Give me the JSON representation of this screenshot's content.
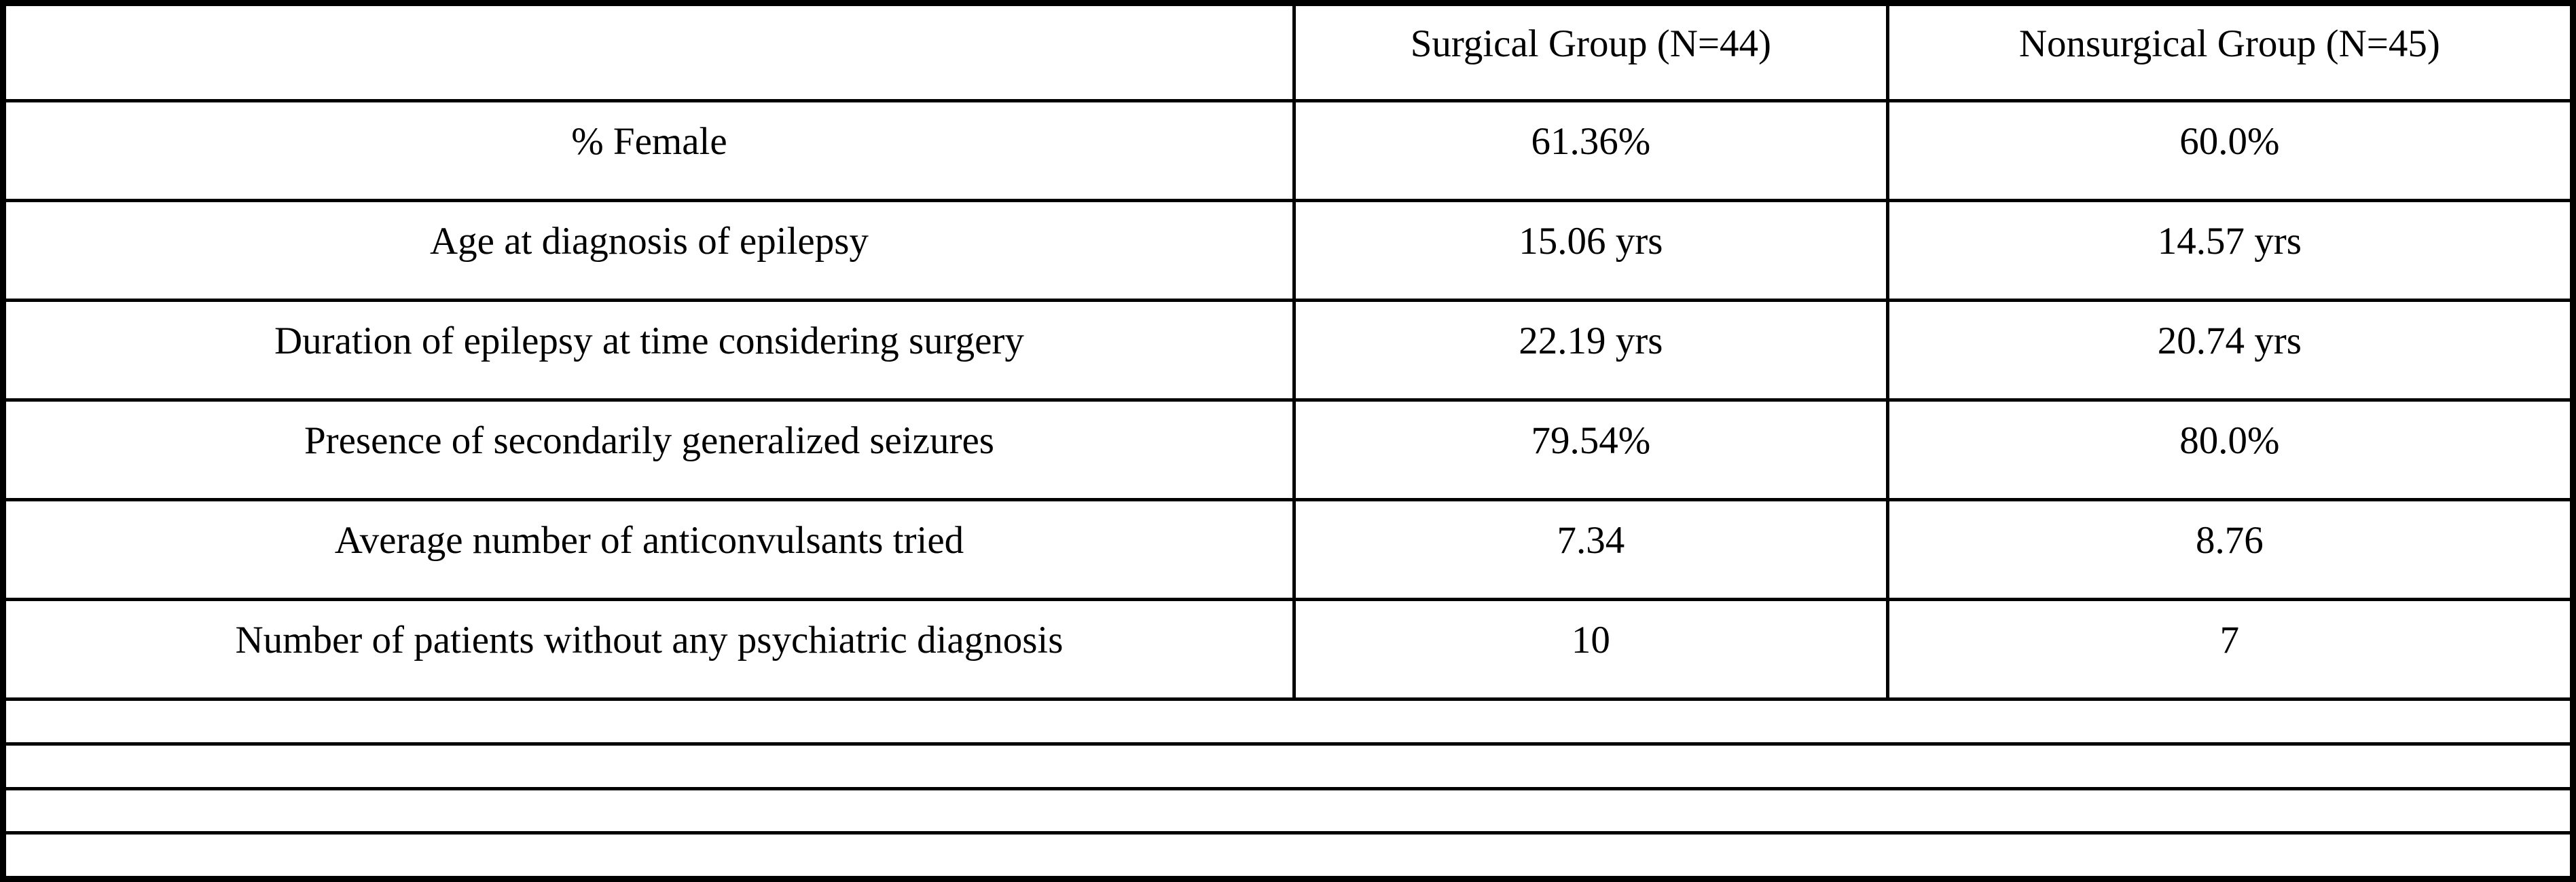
{
  "table": {
    "title_semantic": "Comparison of surgical and nonsurgical epilepsy patient groups",
    "background_color": "#ffffff",
    "border_color": "#000000",
    "columns": [
      "",
      "Surgical Group (N=44)",
      "Nonsurgical Group (N=45)"
    ],
    "rows": [
      {
        "label": "% Female",
        "surgical": "61.36%",
        "nonsurgical": "60.0%"
      },
      {
        "label": "Age at diagnosis of epilepsy",
        "surgical": "15.06 yrs",
        "nonsurgical": "14.57 yrs"
      },
      {
        "label": "Duration of epilepsy at time considering surgery",
        "surgical": "22.19 yrs",
        "nonsurgical": "20.74 yrs"
      },
      {
        "label": "Presence of secondarily generalized seizures",
        "surgical": "79.54%",
        "nonsurgical": "80.0%"
      },
      {
        "label": "Average number of anticonvulsants tried",
        "surgical": "7.34",
        "nonsurgical": "8.76"
      },
      {
        "label": "Number of patients without any psychiatric diagnosis",
        "surgical": "10",
        "nonsurgical": "7"
      }
    ],
    "empty_trailing_rows": 4
  }
}
